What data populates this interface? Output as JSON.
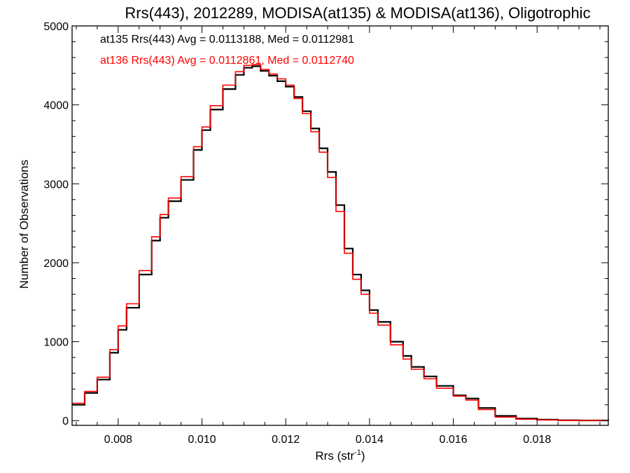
{
  "chart_data": {
    "type": "line",
    "title": "Rrs(443), 2012289, MODISA(at135) & MODISA(at136), Oligotrophic",
    "xlabel": "Rrs (str",
    "xlabel_sup": "-1",
    "xlabel_close": ")",
    "ylabel": "Number of Observations",
    "xlim": [
      0.0069,
      0.0197
    ],
    "ylim": [
      -60,
      5000
    ],
    "x_ticks": [
      0.008,
      0.01,
      0.012,
      0.014,
      0.016,
      0.018
    ],
    "x_tick_labels": [
      "0.008",
      "0.010",
      "0.012",
      "0.014",
      "0.016",
      "0.018"
    ],
    "y_ticks": [
      0,
      1000,
      2000,
      3000,
      4000,
      5000
    ],
    "y_tick_labels": [
      "0",
      "1000",
      "2000",
      "3000",
      "4000",
      "5000"
    ],
    "grid": false,
    "legend_placement": "top-left",
    "annotations": [
      {
        "text": "at135 Rrs(443) Avg = 0.0113188, Med = 0.0112981",
        "color": "#000000"
      },
      {
        "text": "at136 Rrs(443) Avg = 0.0112861, Med = 0.0112740",
        "color": "#ff0000"
      }
    ],
    "series": [
      {
        "color": "#000000",
        "x": [
          0.0069,
          0.0072,
          0.0075,
          0.0078,
          0.008,
          0.0082,
          0.0085,
          0.0088,
          0.009,
          0.0092,
          0.0095,
          0.0098,
          0.01,
          0.0102,
          0.0105,
          0.0108,
          0.011,
          0.0112,
          0.0114,
          0.0116,
          0.0118,
          0.012,
          0.0122,
          0.0124,
          0.0126,
          0.0128,
          0.013,
          0.0132,
          0.0134,
          0.0136,
          0.0138,
          0.014,
          0.0142,
          0.0145,
          0.0148,
          0.015,
          0.0153,
          0.0156,
          0.016,
          0.0163,
          0.0166,
          0.017,
          0.0175,
          0.018,
          0.0185,
          0.019,
          0.0197
        ],
        "y": [
          200,
          350,
          520,
          860,
          1150,
          1430,
          1850,
          2280,
          2570,
          2780,
          3050,
          3430,
          3680,
          3940,
          4200,
          4380,
          4470,
          4490,
          4430,
          4370,
          4300,
          4230,
          4100,
          3920,
          3700,
          3450,
          3150,
          2730,
          2180,
          1850,
          1650,
          1400,
          1250,
          1000,
          820,
          680,
          560,
          440,
          320,
          280,
          160,
          60,
          25,
          12,
          5,
          2,
          0
        ]
      },
      {
        "color": "#ff0000",
        "x": [
          0.0069,
          0.0072,
          0.0075,
          0.0078,
          0.008,
          0.0082,
          0.0085,
          0.0088,
          0.009,
          0.0092,
          0.0095,
          0.0098,
          0.01,
          0.0102,
          0.0105,
          0.0108,
          0.011,
          0.0112,
          0.0114,
          0.0116,
          0.0118,
          0.012,
          0.0122,
          0.0124,
          0.0126,
          0.0128,
          0.013,
          0.0132,
          0.0134,
          0.0136,
          0.0138,
          0.014,
          0.0142,
          0.0145,
          0.0148,
          0.015,
          0.0153,
          0.0156,
          0.016,
          0.0163,
          0.0166,
          0.017,
          0.0175,
          0.018,
          0.0185,
          0.019,
          0.0197
        ],
        "y": [
          220,
          370,
          550,
          900,
          1200,
          1480,
          1900,
          2330,
          2610,
          2820,
          3090,
          3470,
          3720,
          3990,
          4250,
          4420,
          4500,
          4510,
          4450,
          4390,
          4330,
          4250,
          4080,
          3890,
          3660,
          3400,
          3080,
          2650,
          2120,
          1790,
          1600,
          1360,
          1210,
          960,
          780,
          650,
          530,
          410,
          310,
          260,
          140,
          45,
          18,
          8,
          3,
          1,
          0
        ]
      }
    ]
  }
}
